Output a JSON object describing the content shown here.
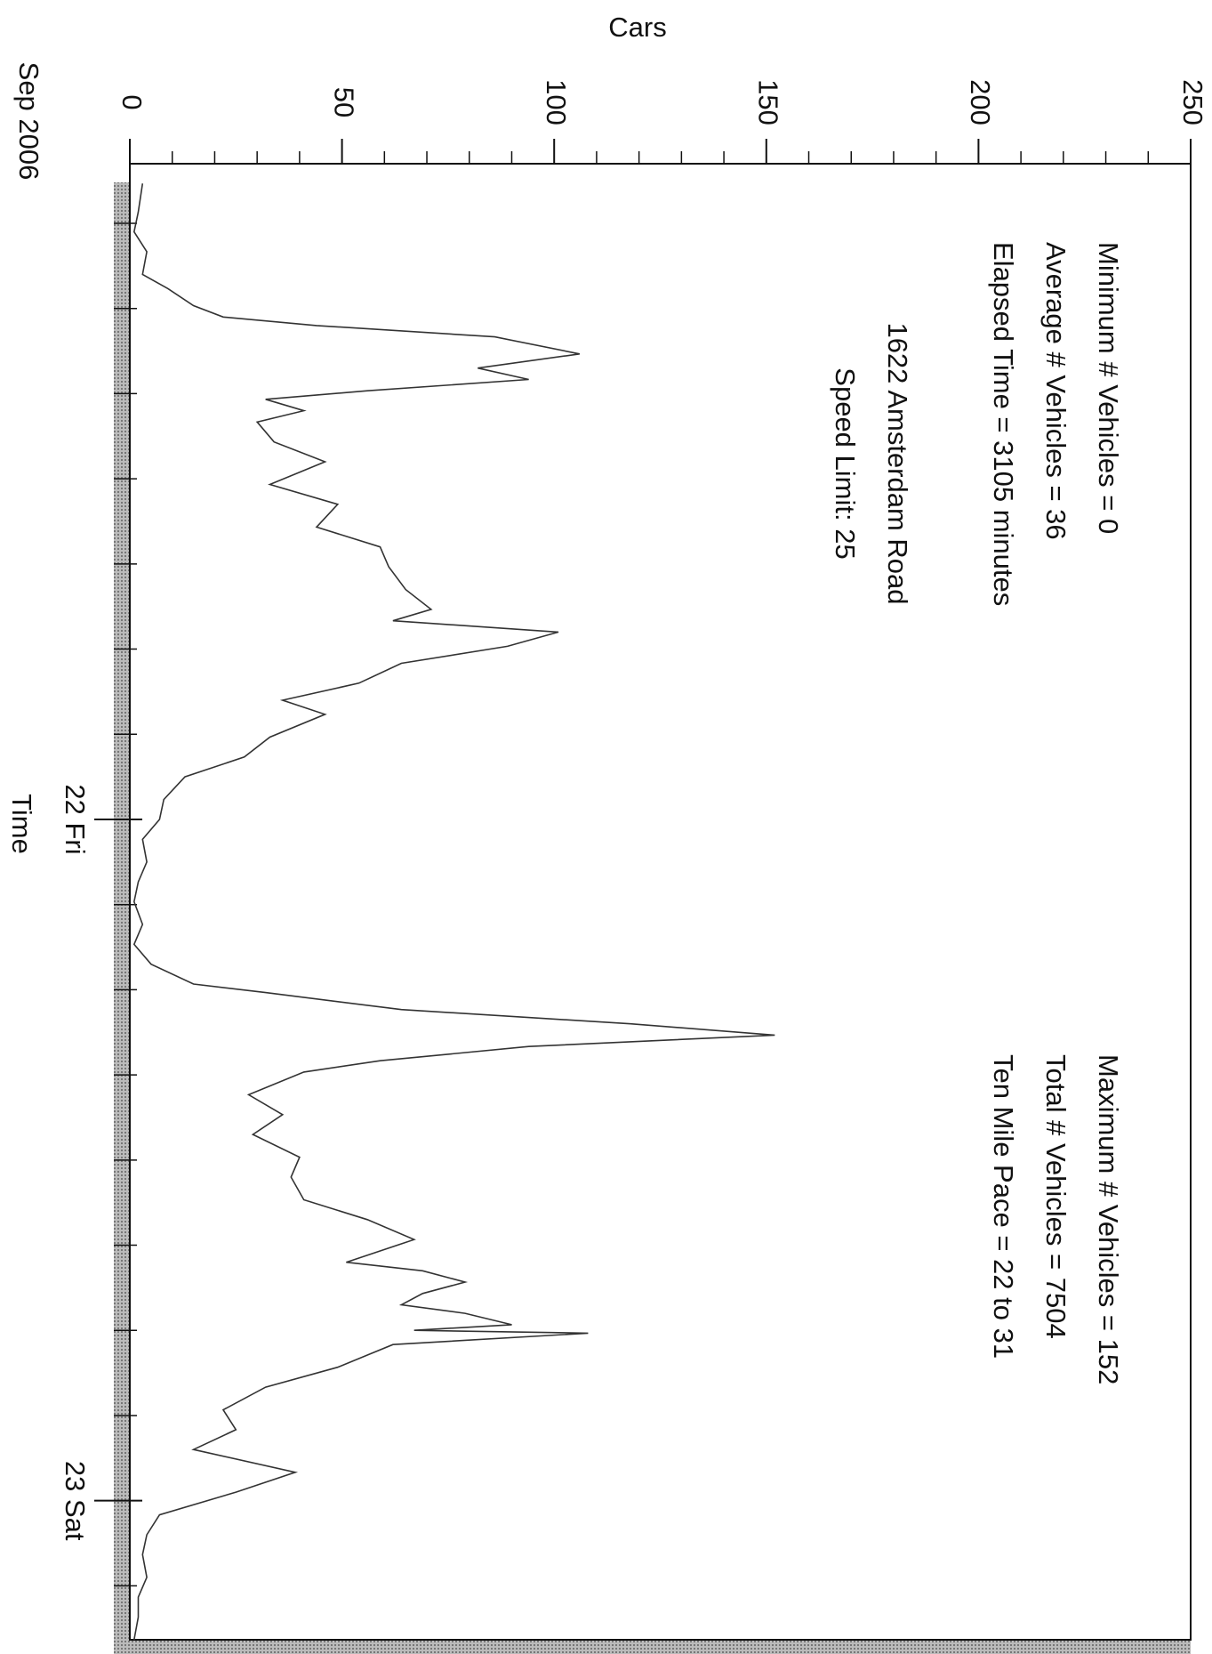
{
  "chart_data": {
    "type": "line",
    "y_label": "Cars",
    "x_label": "Time",
    "x_period_label": "Sep 2006",
    "annotations": [
      "Minimum # Vehicles = 0",
      "Average # Vehicles = 36",
      "Elapsed Time = 3105 minutes",
      "1622 Amsterdam Road",
      "Speed Limit: 25",
      "Maximum # Vehicles = 152",
      "Total # Vehicles = 7504",
      "Ten Mile Pace = 22 to 31"
    ],
    "x": [
      1.6,
      2.6,
      3.3,
      4.0,
      4.8,
      5.3,
      5.9,
      6.3,
      6.6,
      7.0,
      7.6,
      8.1,
      8.5,
      8.9,
      9.2,
      9.6,
      10.0,
      10.7,
      11.4,
      12.2,
      12.9,
      13.7,
      14.4,
      15.1,
      15.9,
      16.6,
      17.0,
      17.4,
      17.9,
      18.5,
      19.2,
      19.8,
      20.3,
      21.1,
      21.8,
      22.5,
      23.3,
      24.0,
      24.7,
      25.5,
      26.2,
      26.9,
      27.7,
      28.4,
      29.1,
      29.8,
      30.1,
      30.7,
      31.2,
      31.6,
      32.0,
      32.5,
      32.9,
      33.7,
      34.4,
      35.1,
      35.9,
      36.6,
      37.4,
      38.1,
      38.8,
      39.6,
      39.9,
      40.3,
      40.7,
      41.1,
      41.4,
      41.8,
      42.0,
      42.1,
      42.5,
      43.3,
      44.0,
      44.8,
      45.5,
      46.2,
      47.0,
      47.7,
      48.5,
      49.2,
      49.9,
      50.7,
      51.4,
      52.1,
      52.9
    ],
    "series": [
      {
        "name": "Cars",
        "color": "#333333",
        "values": [
          3,
          2,
          1,
          4,
          3,
          9,
          15,
          22,
          44,
          86,
          106,
          82,
          94,
          56,
          32,
          41,
          30,
          34,
          46,
          33,
          49,
          44,
          59,
          61,
          65,
          71,
          62,
          101,
          89,
          64,
          54,
          36,
          46,
          33,
          27,
          13,
          8,
          7,
          3,
          4,
          2,
          1,
          3,
          1,
          5,
          15,
          32,
          64,
          118,
          152,
          94,
          59,
          41,
          28,
          36,
          29,
          40,
          38,
          41,
          56,
          67,
          51,
          69,
          79,
          69,
          64,
          79,
          90,
          67,
          108,
          62,
          49,
          32,
          22,
          25,
          15,
          39,
          25,
          7,
          4,
          3,
          4,
          2,
          2,
          1
        ]
      }
    ],
    "xlim": [
      0.9,
      52.9
    ],
    "xticks": [
      {
        "value": 24,
        "label": "22 Fri"
      },
      {
        "value": 48,
        "label": "23 Sat"
      }
    ],
    "xminorticks": [
      3,
      6,
      9,
      12,
      15,
      18,
      21,
      27,
      30,
      33,
      36,
      39,
      42,
      45,
      51
    ],
    "ylim": [
      0,
      250
    ],
    "yticks": [
      0,
      50,
      100,
      150,
      200,
      250
    ],
    "yminorticks": [
      10,
      20,
      30,
      40,
      60,
      70,
      80,
      90,
      110,
      120,
      130,
      140,
      160,
      170,
      180,
      190,
      210,
      220,
      230,
      240
    ]
  }
}
